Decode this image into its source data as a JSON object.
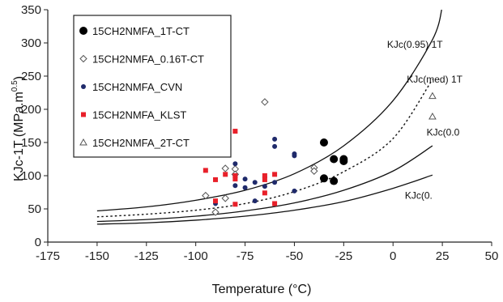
{
  "chart_data": {
    "type": "scatter",
    "title": "",
    "xlabel": "Temperature (°C)",
    "ylabel": "KJc-1T (MPa.m",
    "ylabel_sup": "0.5",
    "ylabel_close": ")",
    "xlim": [
      -175,
      50
    ],
    "ylim": [
      0,
      350
    ],
    "xticks": [
      -175,
      -150,
      -125,
      -100,
      -75,
      -50,
      -25,
      0,
      25,
      50
    ],
    "yticks": [
      0,
      50,
      100,
      150,
      200,
      250,
      300,
      350
    ],
    "grid": false,
    "legend_position": "top-left",
    "series": [
      {
        "name": "15CH2NMFA_1T-CT",
        "marker": "filled-circle",
        "color": "#000000",
        "points": [
          [
            -35,
            150
          ],
          [
            -35,
            96
          ],
          [
            -30,
            125
          ],
          [
            -30,
            92
          ],
          [
            -25,
            125
          ],
          [
            -25,
            122
          ]
        ]
      },
      {
        "name": "15CH2NMFA_0.16T-CT",
        "marker": "open-diamond",
        "color": "#555555",
        "points": [
          [
            -95,
            70
          ],
          [
            -90,
            45
          ],
          [
            -85,
            111
          ],
          [
            -85,
            66
          ],
          [
            -80,
            110
          ],
          [
            -80,
            102
          ],
          [
            -65,
            211
          ],
          [
            -40,
            112
          ],
          [
            -40,
            107
          ]
        ]
      },
      {
        "name": "15CH2NMFA_CVN",
        "marker": "small-filled-circle",
        "color": "#1f2a6b",
        "points": [
          [
            -90,
            58
          ],
          [
            -80,
            118
          ],
          [
            -80,
            100
          ],
          [
            -80,
            85
          ],
          [
            -75,
            95
          ],
          [
            -75,
            82
          ],
          [
            -70,
            90
          ],
          [
            -70,
            62
          ],
          [
            -65,
            98
          ],
          [
            -65,
            84
          ],
          [
            -60,
            155
          ],
          [
            -60,
            144
          ],
          [
            -60,
            90
          ],
          [
            -50,
            133
          ],
          [
            -50,
            130
          ],
          [
            -50,
            77
          ]
        ]
      },
      {
        "name": "15CH2NMFA_KLST",
        "marker": "filled-square",
        "color": "#e8202a",
        "points": [
          [
            -95,
            108
          ],
          [
            -90,
            94
          ],
          [
            -90,
            62
          ],
          [
            -85,
            102
          ],
          [
            -80,
            167
          ],
          [
            -80,
            100
          ],
          [
            -80,
            95
          ],
          [
            -80,
            57
          ],
          [
            -65,
            100
          ],
          [
            -65,
            94
          ],
          [
            -65,
            74
          ],
          [
            -60,
            102
          ],
          [
            -60,
            58
          ]
        ]
      },
      {
        "name": "15CH2NMFA_2T-CT",
        "marker": "open-triangle",
        "color": "#555555",
        "points": [
          [
            20,
            220
          ],
          [
            20,
            189
          ]
        ]
      }
    ],
    "curves": [
      {
        "label": "KJc(0.95) 1T",
        "style": "solid",
        "points": [
          [
            -150,
            47
          ],
          [
            -125,
            53
          ],
          [
            -100,
            63
          ],
          [
            -75,
            78
          ],
          [
            -50,
            103
          ],
          [
            -25,
            145
          ],
          [
            0,
            213
          ],
          [
            20,
            305
          ],
          [
            25,
            355
          ]
        ]
      },
      {
        "label": "KJc(med) 1T",
        "style": "dotted",
        "points": [
          [
            -150,
            38
          ],
          [
            -125,
            42
          ],
          [
            -100,
            48
          ],
          [
            -75,
            58
          ],
          [
            -50,
            76
          ],
          [
            -25,
            106
          ],
          [
            0,
            156
          ],
          [
            20,
            245
          ]
        ]
      },
      {
        "label": "KJc(0.0",
        "style": "solid",
        "points": [
          [
            -150,
            31
          ],
          [
            -125,
            34
          ],
          [
            -100,
            39
          ],
          [
            -75,
            47
          ],
          [
            -50,
            59
          ],
          [
            -25,
            78
          ],
          [
            0,
            107
          ],
          [
            20,
            145
          ]
        ]
      },
      {
        "label": "KJc(0.",
        "style": "solid",
        "points": [
          [
            -150,
            27
          ],
          [
            -125,
            29
          ],
          [
            -100,
            33
          ],
          [
            -75,
            39
          ],
          [
            -50,
            48
          ],
          [
            -25,
            61
          ],
          [
            0,
            81
          ],
          [
            20,
            101
          ]
        ]
      }
    ]
  }
}
